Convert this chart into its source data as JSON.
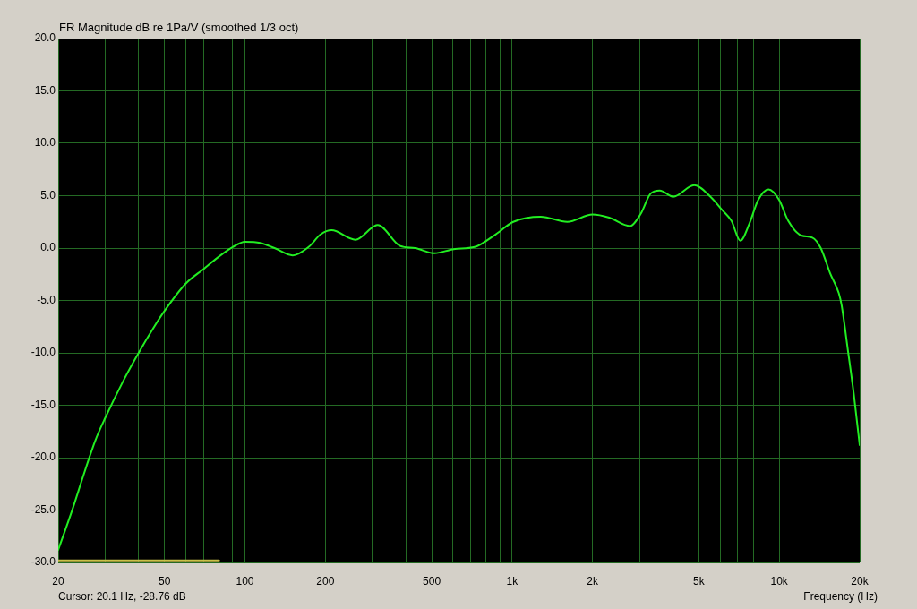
{
  "chart_data": {
    "type": "line",
    "title": "FR Magnitude dB re 1Pa/V (smoothed 1/3 oct)",
    "xlabel": "Frequency (Hz)",
    "annotations": [
      "Cursor: 20.1 Hz, -28.76 dB"
    ],
    "log": "x",
    "grid": true,
    "marker": "none",
    "line_style": "solid",
    "xlim": [
      20,
      20000
    ],
    "ylim": [
      -30,
      20
    ],
    "xticks": [
      20,
      {
        "value": 30,
        "label": null
      },
      {
        "value": 40,
        "label": null
      },
      50,
      {
        "value": 60,
        "label": null
      },
      {
        "value": 70,
        "label": null
      },
      {
        "value": 80,
        "label": null
      },
      {
        "value": 90,
        "label": null
      },
      100,
      200,
      {
        "value": 300,
        "label": null
      },
      {
        "value": 400,
        "label": null
      },
      500,
      {
        "value": 600,
        "label": null
      },
      {
        "value": 700,
        "label": null
      },
      {
        "value": 800,
        "label": null
      },
      {
        "value": 900,
        "label": null
      },
      {
        "value": 1000,
        "label": "1k"
      },
      {
        "value": 2000,
        "label": "2k"
      },
      {
        "value": 3000,
        "label": null
      },
      {
        "value": 4000,
        "label": null
      },
      {
        "value": 5000,
        "label": "5k"
      },
      {
        "value": 6000,
        "label": null
      },
      {
        "value": 7000,
        "label": null
      },
      {
        "value": 8000,
        "label": null
      },
      {
        "value": 9000,
        "label": null
      },
      {
        "value": 10000,
        "label": "10k"
      },
      {
        "value": 20000,
        "label": "20k"
      }
    ],
    "yticks": [
      {
        "value": 20,
        "label": "20.0"
      },
      {
        "value": 15,
        "label": "15.0"
      },
      {
        "value": 10,
        "label": "10.0"
      },
      {
        "value": 5,
        "label": "5.0"
      },
      {
        "value": 0,
        "label": "0.0"
      },
      {
        "value": -5,
        "label": "-5.0"
      },
      {
        "value": -10,
        "label": "-10.0"
      },
      {
        "value": -15,
        "label": "-15.0"
      },
      {
        "value": -20,
        "label": "-20.0"
      },
      {
        "value": -25,
        "label": "-25.0"
      },
      {
        "value": -30,
        "label": "-30.0"
      }
    ],
    "series": [
      {
        "color": "#22ee22",
        "x": [
          20,
          22.5,
          25,
          27.5,
          30,
          35,
          40,
          45,
          50,
          60,
          70,
          80,
          90,
          100,
          114,
          129,
          151,
          173,
          192,
          211,
          259,
          314,
          381,
          433,
          512,
          605,
          724,
          867,
          1010,
          1280,
          1610,
          2000,
          2310,
          2760,
          3020,
          3300,
          3570,
          4010,
          4800,
          5530,
          6130,
          6620,
          7150,
          7720,
          8340,
          9120,
          9990,
          10800,
          12100,
          13300,
          14300,
          15500,
          16700,
          17100,
          18100,
          19000,
          20000
        ],
        "values": [
          -28.8,
          -25.1,
          -21.5,
          -18.4,
          -16.2,
          -12.7,
          -10.0,
          -7.8,
          -6.0,
          -3.4,
          -2.0,
          -0.8,
          0.1,
          0.6,
          0.5,
          0.0,
          -0.7,
          0.1,
          1.3,
          1.7,
          0.8,
          2.2,
          0.2,
          0.0,
          -0.5,
          -0.1,
          0.1,
          1.3,
          2.5,
          3.0,
          2.5,
          3.2,
          2.9,
          2.1,
          3.2,
          5.2,
          5.5,
          4.9,
          6.0,
          4.9,
          3.6,
          2.6,
          0.7,
          2.3,
          4.6,
          5.6,
          4.6,
          2.6,
          1.2,
          1.0,
          0.0,
          -2.4,
          -4.3,
          -5.4,
          -9.9,
          -13.9,
          -18.8
        ]
      },
      {
        "color": "#c8c048",
        "x": [
          20,
          80
        ],
        "values": [
          -29.8,
          -29.8
        ]
      }
    ]
  }
}
